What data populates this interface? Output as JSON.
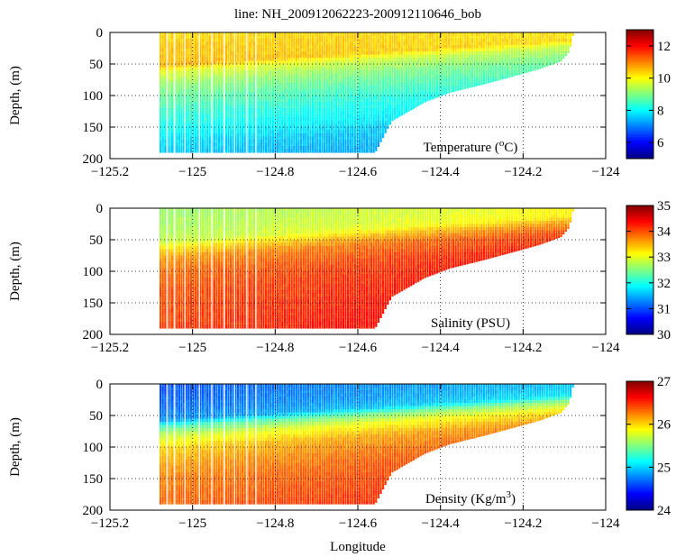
{
  "figure": {
    "title": "line: NH_200912062223-200912110646_bob",
    "xlabel": "Longitude"
  },
  "chart_data": [
    {
      "type": "heatmap",
      "id": "temperature",
      "label_main": "Temperature (",
      "label_sup": "o",
      "label_end": "C)",
      "xlabel": "",
      "ylabel": "Depth, (m)",
      "xlim": [
        -125.2,
        -124.0
      ],
      "ylim": [
        0,
        200
      ],
      "y_inverted": true,
      "xticks": [
        -125.2,
        -125.0,
        -124.8,
        -124.6,
        -124.4,
        -124.2,
        -124.0
      ],
      "xtick_labels": [
        "−125.2",
        "−125",
        "−124.8",
        "−124.6",
        "−124.4",
        "−124.2",
        "−124"
      ],
      "yticks": [
        0,
        50,
        100,
        150,
        200
      ],
      "ytick_labels": [
        "0",
        "50",
        "100",
        "150",
        "200"
      ],
      "grid": "dotted",
      "colorbar": {
        "min": 5,
        "max": 13,
        "ticks": [
          6,
          8,
          10,
          12
        ],
        "tick_labels": [
          "6",
          "8",
          "10",
          "12"
        ],
        "colormap": "jet"
      },
      "survey_lon_range": [
        -125.08,
        -124.08
      ],
      "bottom_profile": {
        "lon": [
          -125.08,
          -124.56,
          -124.52,
          -124.44,
          -124.38,
          -124.3,
          -124.22,
          -124.16,
          -124.11,
          -124.09,
          -124.08
        ],
        "depth": [
          190,
          190,
          140,
          110,
          95,
          82,
          68,
          57,
          45,
          30,
          0
        ]
      },
      "profile_depths": [
        0,
        10,
        25,
        35,
        50,
        60,
        80,
        100,
        125,
        150,
        175,
        200
      ],
      "profile_values": [
        10.3,
        10.4,
        10.5,
        10.5,
        10.6,
        9.8,
        9.2,
        8.8,
        8.4,
        8.1,
        7.7,
        7.5
      ]
    },
    {
      "type": "heatmap",
      "id": "salinity",
      "label_main": "Salinity (PSU)",
      "label_sup": "",
      "label_end": "",
      "xlabel": "",
      "ylabel": "Depth, (m)",
      "xlim": [
        -125.2,
        -124.0
      ],
      "ylim": [
        0,
        200
      ],
      "y_inverted": true,
      "xticks": [
        -125.2,
        -125.0,
        -124.8,
        -124.6,
        -124.4,
        -124.2,
        -124.0
      ],
      "xtick_labels": [
        "−125.2",
        "−125",
        "−124.8",
        "−124.6",
        "−124.4",
        "−124.2",
        "−124"
      ],
      "yticks": [
        0,
        50,
        100,
        150,
        200
      ],
      "ytick_labels": [
        "0",
        "50",
        "100",
        "150",
        "200"
      ],
      "grid": "dotted",
      "colorbar": {
        "min": 30,
        "max": 35,
        "ticks": [
          30,
          31,
          32,
          33,
          34,
          35
        ],
        "tick_labels": [
          "30",
          "31",
          "32",
          "33",
          "34",
          "35"
        ],
        "colormap": "jet"
      },
      "survey_lon_range": [
        -125.08,
        -124.08
      ],
      "bottom_profile": {
        "lon": [
          -125.08,
          -124.56,
          -124.52,
          -124.44,
          -124.38,
          -124.3,
          -124.22,
          -124.16,
          -124.11,
          -124.09,
          -124.08
        ],
        "depth": [
          190,
          190,
          140,
          110,
          95,
          82,
          68,
          57,
          45,
          30,
          0
        ]
      },
      "profile_depths": [
        0,
        15,
        35,
        50,
        60,
        75,
        100,
        125,
        150,
        175,
        200
      ],
      "profile_values": [
        32.6,
        32.65,
        32.7,
        32.8,
        33.2,
        33.6,
        33.85,
        33.95,
        34.0,
        34.05,
        34.1
      ]
    },
    {
      "type": "heatmap",
      "id": "density",
      "label_main": "Density (Kg/m",
      "label_sup": "3",
      "label_end": ")",
      "xlabel": "Longitude",
      "ylabel": "Depth, (m)",
      "xlim": [
        -125.2,
        -124.0
      ],
      "ylim": [
        0,
        200
      ],
      "y_inverted": true,
      "xticks": [
        -125.2,
        -125.0,
        -124.8,
        -124.6,
        -124.4,
        -124.2,
        -124.0
      ],
      "xtick_labels": [
        "−125.2",
        "−125",
        "−124.8",
        "−124.6",
        "−124.4",
        "−124.2",
        "−124"
      ],
      "yticks": [
        0,
        50,
        100,
        150,
        200
      ],
      "ytick_labels": [
        "0",
        "50",
        "100",
        "150",
        "200"
      ],
      "grid": "dotted",
      "colorbar": {
        "min": 24,
        "max": 27,
        "ticks": [
          24,
          25,
          26,
          27
        ],
        "tick_labels": [
          "24",
          "25",
          "26",
          "27"
        ],
        "colormap": "jet"
      },
      "survey_lon_range": [
        -125.08,
        -124.08
      ],
      "bottom_profile": {
        "lon": [
          -125.08,
          -124.56,
          -124.52,
          -124.44,
          -124.38,
          -124.3,
          -124.22,
          -124.16,
          -124.11,
          -124.09,
          -124.08
        ],
        "depth": [
          190,
          190,
          140,
          110,
          95,
          82,
          68,
          57,
          45,
          30,
          0
        ]
      },
      "profile_depths": [
        0,
        20,
        40,
        55,
        65,
        80,
        100,
        125,
        150,
        175,
        200
      ],
      "profile_values": [
        24.6,
        24.65,
        24.7,
        24.8,
        25.3,
        25.7,
        26.0,
        26.15,
        26.25,
        26.3,
        26.35
      ]
    }
  ]
}
